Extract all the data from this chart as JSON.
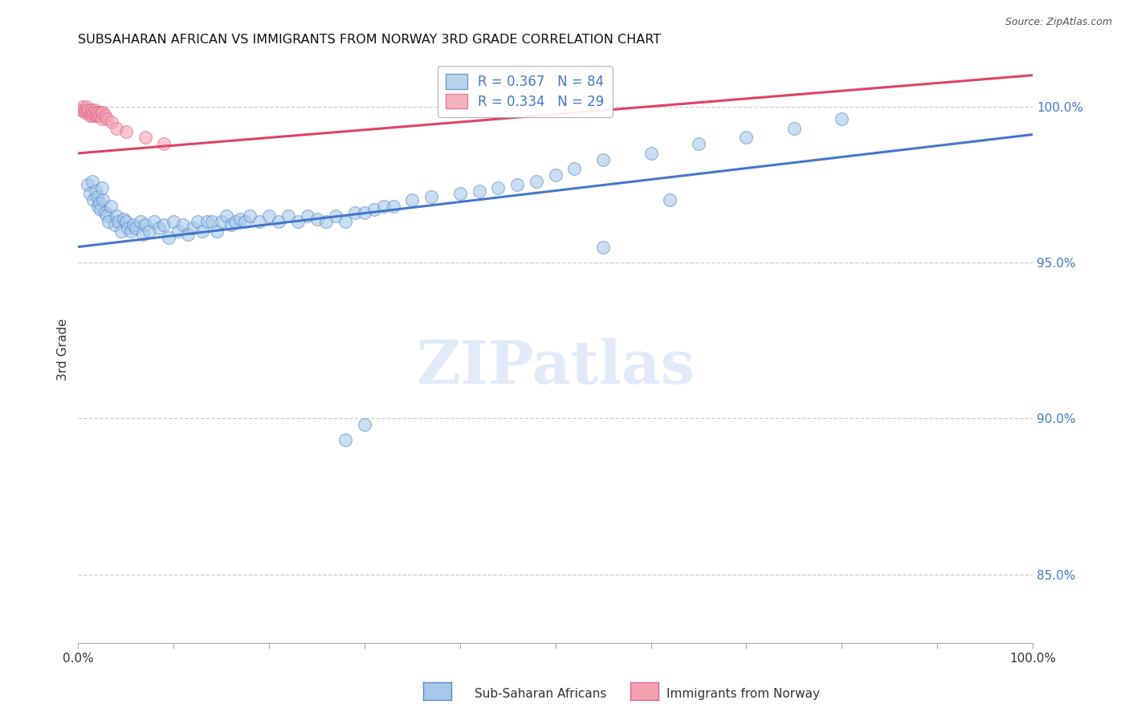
{
  "title": "SUBSAHARAN AFRICAN VS IMMIGRANTS FROM NORWAY 3RD GRADE CORRELATION CHART",
  "source": "Source: ZipAtlas.com",
  "ylabel": "3rd Grade",
  "ytick_values": [
    0.85,
    0.9,
    0.95,
    1.0
  ],
  "ytick_labels": [
    "85.0%",
    "90.0%",
    "95.0%",
    "100.0%"
  ],
  "xmin": 0.0,
  "xmax": 1.0,
  "ymin": 0.828,
  "ymax": 1.016,
  "legend_blue_label": "R = 0.367   N = 84",
  "legend_pink_label": "R = 0.334   N = 29",
  "blue_color": "#a8c8e8",
  "pink_color": "#f4a0b0",
  "blue_edge_color": "#5588cc",
  "pink_edge_color": "#dd6688",
  "blue_line_color": "#4477cc",
  "pink_line_color": "#dd4466",
  "watermark_text": "ZIPatlas",
  "watermark_color": "#c8daf5",
  "source_color": "#555555",
  "title_color": "#111111",
  "grid_color": "#cccccc",
  "right_axis_color": "#4477cc",
  "bottom_label_blue": "Sub-Saharan Africans",
  "bottom_label_pink": "Immigrants from Norway",
  "blue_x": [
    0.01,
    0.012,
    0.015,
    0.016,
    0.018,
    0.02,
    0.021,
    0.022,
    0.023,
    0.025,
    0.026,
    0.028,
    0.03,
    0.032,
    0.034,
    0.038,
    0.04,
    0.042,
    0.045,
    0.048,
    0.05,
    0.052,
    0.055,
    0.058,
    0.06,
    0.065,
    0.068,
    0.07,
    0.075,
    0.08,
    0.085,
    0.09,
    0.095,
    0.1,
    0.105,
    0.11,
    0.115,
    0.12,
    0.125,
    0.13,
    0.135,
    0.14,
    0.145,
    0.15,
    0.155,
    0.16,
    0.165,
    0.17,
    0.175,
    0.18,
    0.19,
    0.2,
    0.21,
    0.22,
    0.23,
    0.24,
    0.25,
    0.26,
    0.27,
    0.28,
    0.29,
    0.3,
    0.31,
    0.32,
    0.33,
    0.35,
    0.37,
    0.4,
    0.42,
    0.44,
    0.46,
    0.48,
    0.5,
    0.52,
    0.55,
    0.6,
    0.65,
    0.7,
    0.75,
    0.8,
    0.62,
    0.55,
    0.3,
    0.28
  ],
  "blue_y": [
    0.975,
    0.972,
    0.976,
    0.97,
    0.973,
    0.971,
    0.968,
    0.969,
    0.967,
    0.974,
    0.97,
    0.966,
    0.965,
    0.963,
    0.968,
    0.962,
    0.965,
    0.963,
    0.96,
    0.964,
    0.963,
    0.961,
    0.96,
    0.962,
    0.961,
    0.963,
    0.959,
    0.962,
    0.96,
    0.963,
    0.961,
    0.962,
    0.958,
    0.963,
    0.96,
    0.962,
    0.959,
    0.961,
    0.963,
    0.96,
    0.963,
    0.963,
    0.96,
    0.963,
    0.965,
    0.962,
    0.963,
    0.964,
    0.963,
    0.965,
    0.963,
    0.965,
    0.963,
    0.965,
    0.963,
    0.965,
    0.964,
    0.963,
    0.965,
    0.963,
    0.966,
    0.966,
    0.967,
    0.968,
    0.968,
    0.97,
    0.971,
    0.972,
    0.973,
    0.974,
    0.975,
    0.976,
    0.978,
    0.98,
    0.983,
    0.985,
    0.988,
    0.99,
    0.993,
    0.996,
    0.97,
    0.955,
    0.898,
    0.893
  ],
  "pink_x": [
    0.003,
    0.005,
    0.006,
    0.007,
    0.008,
    0.009,
    0.01,
    0.011,
    0.012,
    0.013,
    0.014,
    0.015,
    0.016,
    0.017,
    0.018,
    0.019,
    0.02,
    0.021,
    0.022,
    0.024,
    0.025,
    0.026,
    0.028,
    0.03,
    0.035,
    0.04,
    0.05,
    0.07,
    0.09
  ],
  "pink_y": [
    0.999,
    1.0,
    0.999,
    0.998,
    0.999,
    1.0,
    0.998,
    0.999,
    0.997,
    0.998,
    0.999,
    0.997,
    0.998,
    0.999,
    0.997,
    0.998,
    0.997,
    0.998,
    0.997,
    0.998,
    0.996,
    0.998,
    0.997,
    0.996,
    0.995,
    0.993,
    0.992,
    0.99,
    0.988
  ],
  "marker_size": 130,
  "xtick_only_edges": true,
  "xtick_positions": [
    0.0,
    0.1,
    0.2,
    0.3,
    0.4,
    0.5,
    0.6,
    0.7,
    0.8,
    0.9,
    1.0
  ]
}
